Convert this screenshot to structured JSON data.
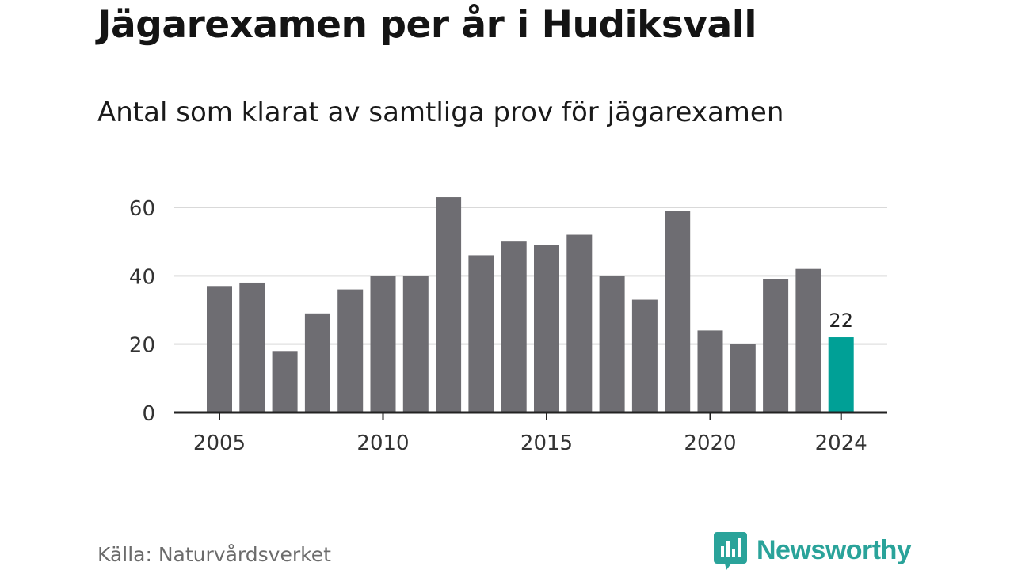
{
  "title": "Jägarexamen per år i Hudiksvall",
  "subtitle": "Antal som klarat av samtliga prov för jägarexamen",
  "source": "Källa: Naturvårdsverket",
  "brand": {
    "name": "Newsworthy",
    "icon": "newsworthy-chart-bubble-icon",
    "color": "#2aa39a"
  },
  "colors": {
    "bar": "#6e6d72",
    "highlight": "#00a096",
    "grid": "#d9d9d9",
    "axis": "#222222"
  },
  "chart_data": {
    "type": "bar",
    "x": [
      2005,
      2006,
      2007,
      2008,
      2009,
      2010,
      2011,
      2012,
      2013,
      2014,
      2015,
      2016,
      2017,
      2018,
      2019,
      2020,
      2021,
      2022,
      2023,
      2024
    ],
    "values": [
      37,
      38,
      18,
      29,
      36,
      40,
      40,
      63,
      46,
      50,
      49,
      52,
      40,
      33,
      59,
      24,
      20,
      39,
      42,
      22
    ],
    "highlight_index": 19,
    "data_labels": [
      {
        "index": 19,
        "text": "22"
      }
    ],
    "x_ticks": [
      "2005",
      "2010",
      "2015",
      "2020",
      "2024"
    ],
    "y_ticks": [
      "0",
      "20",
      "40",
      "60"
    ],
    "ylim": [
      0,
      65
    ],
    "grid": true,
    "xlabel": "",
    "ylabel": ""
  }
}
